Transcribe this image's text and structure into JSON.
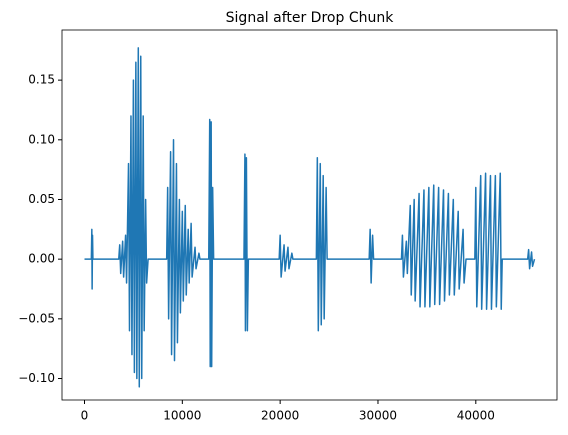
{
  "chart_data": {
    "type": "line",
    "title": "Signal after Drop Chunk",
    "x": [
      0,
      700,
      750,
      780,
      820,
      860,
      3500,
      3600,
      3700,
      3900,
      4000,
      4200,
      4300,
      4500,
      4600,
      4750,
      4850,
      5000,
      5100,
      5250,
      5350,
      5500,
      5600,
      5750,
      5850,
      6000,
      6100,
      6250,
      6350,
      6500,
      8400,
      8500,
      8600,
      8800,
      8900,
      9100,
      9200,
      9400,
      9500,
      9700,
      9800,
      10000,
      10100,
      10300,
      10400,
      10600,
      10700,
      10900,
      11000,
      11300,
      11400,
      11700,
      11800,
      12700,
      12800,
      12850,
      12950,
      13000,
      13100,
      13200,
      16300,
      16400,
      16450,
      16550,
      16650,
      16750,
      19900,
      20000,
      20100,
      20400,
      20500,
      20800,
      20900,
      21200,
      21300,
      23700,
      23800,
      23900,
      24100,
      24200,
      24400,
      24500,
      24700,
      24800,
      29100,
      29200,
      29300,
      29450,
      29550,
      32400,
      32500,
      32600,
      32900,
      33000,
      33300,
      33400,
      33700,
      33800,
      34200,
      34300,
      34700,
      34800,
      35200,
      35300,
      35700,
      35800,
      36200,
      36300,
      36700,
      36800,
      37200,
      37300,
      37700,
      37800,
      38200,
      38300,
      38700,
      38800,
      39000,
      39900,
      40000,
      40100,
      40500,
      40600,
      41000,
      41100,
      41500,
      41600,
      42000,
      42100,
      42500,
      42600,
      42700,
      45300,
      45400,
      45500,
      45700,
      45800,
      46000
    ],
    "series": [
      {
        "color": "#1f77b4",
        "values": [
          0,
          0,
          0.025,
          -0.025,
          0.02,
          0,
          0,
          0.012,
          -0.012,
          0.015,
          -0.015,
          0.02,
          -0.02,
          0.08,
          -0.06,
          0.12,
          -0.08,
          0.15,
          -0.095,
          0.165,
          -0.1,
          0.177,
          -0.107,
          0.17,
          -0.1,
          0.12,
          -0.06,
          0.05,
          -0.02,
          0,
          0,
          0.06,
          -0.05,
          0.09,
          -0.08,
          0.1,
          -0.085,
          0.08,
          -0.07,
          0.05,
          -0.045,
          0.04,
          -0.035,
          0.045,
          -0.03,
          0.025,
          -0.02,
          0.03,
          -0.015,
          0.01,
          -0.008,
          0.005,
          0,
          0,
          0.117,
          -0.09,
          0.115,
          -0.09,
          0.06,
          0,
          0,
          0.088,
          -0.06,
          0.085,
          -0.06,
          0,
          0,
          0.02,
          -0.015,
          0.012,
          -0.01,
          0.01,
          -0.008,
          0.005,
          0,
          0,
          0.085,
          -0.06,
          0.08,
          -0.055,
          0.07,
          -0.05,
          0.06,
          0,
          0,
          0.025,
          -0.02,
          0.02,
          0,
          0,
          0.02,
          -0.015,
          0.015,
          -0.012,
          0.045,
          -0.03,
          0.05,
          -0.035,
          0.055,
          -0.04,
          0.058,
          -0.04,
          0.06,
          -0.04,
          0.062,
          -0.038,
          0.06,
          -0.038,
          0.058,
          -0.035,
          0.055,
          -0.03,
          0.05,
          -0.03,
          0.04,
          -0.025,
          0.025,
          -0.02,
          0,
          0,
          0.06,
          -0.04,
          0.07,
          -0.042,
          0.072,
          -0.042,
          0.07,
          -0.042,
          0.07,
          -0.04,
          0.072,
          -0.042,
          0,
          0,
          0.008,
          -0.008,
          0.006,
          -0.006,
          0
        ]
      }
    ],
    "xlim": [
      -2300,
      48300
    ],
    "xticks": [
      0,
      10000,
      20000,
      30000,
      40000
    ],
    "ylim": [
      -0.118,
      0.192
    ],
    "yticks": [
      {
        "value": -0.1,
        "label": "−0.10"
      },
      {
        "value": -0.05,
        "label": "−0.05"
      },
      {
        "value": 0,
        "label": "0.00"
      },
      {
        "value": 0.05,
        "label": "0.05"
      },
      {
        "value": 0.1,
        "label": "0.10"
      },
      {
        "value": 0.15,
        "label": "0.15"
      }
    ],
    "grid": false
  }
}
